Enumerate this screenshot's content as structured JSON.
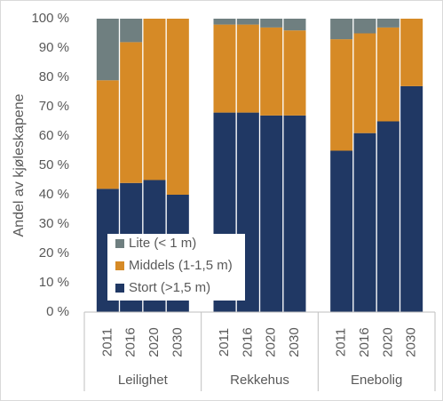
{
  "chart_data": {
    "type": "stacked-bar",
    "y_label": "Andel av kjøleskapene",
    "groups": [
      "Leilighet",
      "Rekkehus",
      "Enebolig"
    ],
    "categories": [
      "2011",
      "2016",
      "2020",
      "2030",
      "2011",
      "2016",
      "2020",
      "2030",
      "2011",
      "2016",
      "2020",
      "2030"
    ],
    "series": [
      {
        "name": "Stort (>1,5 m)",
        "color": "#203864",
        "values": [
          42,
          44,
          45,
          40,
          68,
          68,
          67,
          67,
          55,
          61,
          65,
          77
        ]
      },
      {
        "name": "Middels (1-1,5 m)",
        "color": "#d68a26",
        "values": [
          37,
          48,
          55,
          60,
          30,
          30,
          30,
          29,
          38,
          34,
          32,
          23
        ]
      },
      {
        "name": "Lite (< 1 m)",
        "color": "#6f7f80",
        "values": [
          21,
          8,
          0,
          0,
          2,
          2,
          3,
          4,
          7,
          5,
          3,
          0
        ]
      }
    ],
    "ylim": [
      0,
      100
    ],
    "yticks": [
      {
        "value": 0,
        "label": "0 %"
      },
      {
        "value": 10,
        "label": "10 %"
      },
      {
        "value": 20,
        "label": "20 %"
      },
      {
        "value": 30,
        "label": "30 %"
      },
      {
        "value": 40,
        "label": "40 %"
      },
      {
        "value": 50,
        "label": "50 %"
      },
      {
        "value": 60,
        "label": "60 %"
      },
      {
        "value": 70,
        "label": "70 %"
      },
      {
        "value": 80,
        "label": "80 %"
      },
      {
        "value": 90,
        "label": "90 %"
      },
      {
        "value": 100,
        "label": "100 %"
      }
    ]
  }
}
